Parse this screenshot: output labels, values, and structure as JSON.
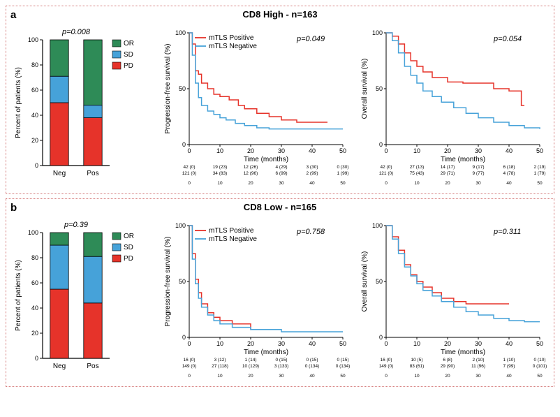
{
  "panels": [
    {
      "label": "a",
      "title": "CD8 High - n=163",
      "bar": {
        "pvalue": "p=0.008",
        "ylabel": "Percent of patients (%)",
        "ylim": [
          0,
          100
        ],
        "ytick_step": 20,
        "categories": [
          "Neg",
          "Pos"
        ],
        "series": [
          {
            "name": "PD",
            "color": "#e6332a",
            "values": [
              50,
              38
            ]
          },
          {
            "name": "SD",
            "color": "#46a2d9",
            "values": [
              21,
              10
            ]
          },
          {
            "name": "OR",
            "color": "#2e8b57",
            "values": [
              29,
              52
            ]
          }
        ],
        "legend_order": [
          "OR",
          "SD",
          "PD"
        ],
        "bar_width": 0.55
      },
      "survival": [
        {
          "ylabel": "Progression-free survival (%)",
          "xlabel": "Time (months)",
          "pvalue": "p=0.049",
          "xlim": [
            0,
            50
          ],
          "xtick_step": 10,
          "ylim": [
            0,
            100
          ],
          "ytick_step": 50,
          "legend_pos": "top-left",
          "lines": [
            {
              "name": "mTLS Positive",
              "color": "#e6332a",
              "points": [
                [
                  0,
                  100
                ],
                [
                  1,
                  90
                ],
                [
                  2,
                  66
                ],
                [
                  3,
                  63
                ],
                [
                  4,
                  55
                ],
                [
                  6,
                  50
                ],
                [
                  8,
                  45
                ],
                [
                  10,
                  43
                ],
                [
                  13,
                  40
                ],
                [
                  16,
                  35
                ],
                [
                  18,
                  32
                ],
                [
                  22,
                  28
                ],
                [
                  26,
                  25
                ],
                [
                  30,
                  22
                ],
                [
                  35,
                  20
                ],
                [
                  45,
                  20
                ]
              ]
            },
            {
              "name": "mTLS Negative",
              "color": "#46a2d9",
              "points": [
                [
                  0,
                  100
                ],
                [
                  1,
                  80
                ],
                [
                  2,
                  55
                ],
                [
                  3,
                  42
                ],
                [
                  4,
                  35
                ],
                [
                  6,
                  30
                ],
                [
                  8,
                  27
                ],
                [
                  10,
                  24
                ],
                [
                  12,
                  22
                ],
                [
                  15,
                  19
                ],
                [
                  18,
                  17
                ],
                [
                  22,
                  15
                ],
                [
                  26,
                  14
                ],
                [
                  30,
                  14
                ],
                [
                  40,
                  14
                ],
                [
                  50,
                  14
                ]
              ]
            }
          ],
          "risk_table": {
            "ticks": [
              0,
              10,
              20,
              30,
              40,
              50
            ],
            "rows": [
              {
                "color": "#e6332a",
                "cells": [
                  "42 (0)",
                  "19 (23)",
                  "12 (26)",
                  "4 (29)",
                  "3 (30)",
                  "0 (30)"
                ]
              },
              {
                "color": "#46a2d9",
                "cells": [
                  "121 (0)",
                  "34 (83)",
                  "12 (96)",
                  "6 (99)",
                  "2 (99)",
                  "1 (99)"
                ]
              }
            ]
          }
        },
        {
          "ylabel": "Overall survival (%)",
          "xlabel": "Time (months)",
          "pvalue": "p=0.054",
          "xlim": [
            0,
            50
          ],
          "xtick_step": 10,
          "ylim": [
            0,
            100
          ],
          "ytick_step": 50,
          "legend_pos": "none",
          "lines": [
            {
              "name": "mTLS Positive",
              "color": "#e6332a",
              "points": [
                [
                  0,
                  100
                ],
                [
                  2,
                  97
                ],
                [
                  4,
                  90
                ],
                [
                  6,
                  82
                ],
                [
                  8,
                  75
                ],
                [
                  10,
                  70
                ],
                [
                  12,
                  65
                ],
                [
                  15,
                  60
                ],
                [
                  20,
                  56
                ],
                [
                  25,
                  55
                ],
                [
                  30,
                  55
                ],
                [
                  35,
                  50
                ],
                [
                  40,
                  48
                ],
                [
                  44,
                  35
                ],
                [
                  45,
                  35
                ]
              ]
            },
            {
              "name": "mTLS Negative",
              "color": "#46a2d9",
              "points": [
                [
                  0,
                  100
                ],
                [
                  2,
                  93
                ],
                [
                  4,
                  82
                ],
                [
                  6,
                  70
                ],
                [
                  8,
                  62
                ],
                [
                  10,
                  55
                ],
                [
                  12,
                  48
                ],
                [
                  15,
                  43
                ],
                [
                  18,
                  38
                ],
                [
                  22,
                  33
                ],
                [
                  26,
                  28
                ],
                [
                  30,
                  24
                ],
                [
                  35,
                  20
                ],
                [
                  40,
                  17
                ],
                [
                  45,
                  15
                ],
                [
                  50,
                  14
                ]
              ]
            }
          ],
          "risk_table": {
            "ticks": [
              0,
              10,
              20,
              30,
              40,
              50
            ],
            "rows": [
              {
                "color": "#e6332a",
                "cells": [
                  "42 (0)",
                  "27 (13)",
                  "14 (17)",
                  "9 (17)",
                  "6 (18)",
                  "2 (19)"
                ]
              },
              {
                "color": "#46a2d9",
                "cells": [
                  "121 (0)",
                  "75 (43)",
                  "29 (71)",
                  "9 (77)",
                  "4 (78)",
                  "1 (79)"
                ]
              }
            ]
          }
        }
      ]
    },
    {
      "label": "b",
      "title": "CD8 Low - n=165",
      "bar": {
        "pvalue": "p=0.39",
        "ylabel": "Percent of patients (%)",
        "ylim": [
          0,
          100
        ],
        "ytick_step": 20,
        "categories": [
          "Neg",
          "Pos"
        ],
        "series": [
          {
            "name": "PD",
            "color": "#e6332a",
            "values": [
              55,
              44
            ]
          },
          {
            "name": "SD",
            "color": "#46a2d9",
            "values": [
              35,
              37
            ]
          },
          {
            "name": "OR",
            "color": "#2e8b57",
            "values": [
              10,
              19
            ]
          }
        ],
        "legend_order": [
          "OR",
          "SD",
          "PD"
        ],
        "bar_width": 0.55
      },
      "survival": [
        {
          "ylabel": "Progression-free survival (%)",
          "xlabel": "Time (months)",
          "pvalue": "p=0.758",
          "xlim": [
            0,
            50
          ],
          "xtick_step": 10,
          "ylim": [
            0,
            100
          ],
          "ytick_step": 50,
          "legend_pos": "top-left",
          "lines": [
            {
              "name": "mTLS Positive",
              "color": "#e6332a",
              "points": [
                [
                  0,
                  100
                ],
                [
                  1,
                  75
                ],
                [
                  2,
                  52
                ],
                [
                  3,
                  40
                ],
                [
                  4,
                  30
                ],
                [
                  6,
                  22
                ],
                [
                  8,
                  18
                ],
                [
                  10,
                  15
                ],
                [
                  14,
                  12
                ],
                [
                  20,
                  7
                ],
                [
                  30,
                  7
                ]
              ]
            },
            {
              "name": "mTLS Negative",
              "color": "#46a2d9",
              "points": [
                [
                  0,
                  100
                ],
                [
                  1,
                  70
                ],
                [
                  2,
                  48
                ],
                [
                  3,
                  35
                ],
                [
                  4,
                  27
                ],
                [
                  6,
                  20
                ],
                [
                  8,
                  15
                ],
                [
                  10,
                  12
                ],
                [
                  14,
                  9
                ],
                [
                  20,
                  7
                ],
                [
                  30,
                  5
                ],
                [
                  40,
                  5
                ],
                [
                  50,
                  5
                ]
              ]
            }
          ],
          "risk_table": {
            "ticks": [
              0,
              10,
              20,
              30,
              40,
              50
            ],
            "rows": [
              {
                "color": "#e6332a",
                "cells": [
                  "16 (0)",
                  "3 (12)",
                  "1 (14)",
                  "0 (15)",
                  "0 (15)",
                  "0 (15)"
                ]
              },
              {
                "color": "#46a2d9",
                "cells": [
                  "149 (0)",
                  "27 (118)",
                  "10 (129)",
                  "3 (133)",
                  "0 (134)",
                  "0 (134)"
                ]
              }
            ]
          }
        },
        {
          "ylabel": "Overall survival (%)",
          "xlabel": "Time (months)",
          "pvalue": "p=0.311",
          "xlim": [
            0,
            50
          ],
          "xtick_step": 10,
          "ylim": [
            0,
            100
          ],
          "ytick_step": 50,
          "legend_pos": "none",
          "lines": [
            {
              "name": "mTLS Positive",
              "color": "#e6332a",
              "points": [
                [
                  0,
                  100
                ],
                [
                  2,
                  90
                ],
                [
                  4,
                  78
                ],
                [
                  6,
                  65
                ],
                [
                  8,
                  56
                ],
                [
                  10,
                  50
                ],
                [
                  12,
                  45
                ],
                [
                  15,
                  40
                ],
                [
                  18,
                  35
                ],
                [
                  22,
                  32
                ],
                [
                  26,
                  30
                ],
                [
                  30,
                  30
                ],
                [
                  40,
                  30
                ]
              ]
            },
            {
              "name": "mTLS Negative",
              "color": "#46a2d9",
              "points": [
                [
                  0,
                  100
                ],
                [
                  2,
                  88
                ],
                [
                  4,
                  75
                ],
                [
                  6,
                  63
                ],
                [
                  8,
                  55
                ],
                [
                  10,
                  48
                ],
                [
                  12,
                  42
                ],
                [
                  15,
                  37
                ],
                [
                  18,
                  32
                ],
                [
                  22,
                  27
                ],
                [
                  26,
                  23
                ],
                [
                  30,
                  20
                ],
                [
                  35,
                  17
                ],
                [
                  40,
                  15
                ],
                [
                  45,
                  14
                ],
                [
                  50,
                  14
                ]
              ]
            }
          ],
          "risk_table": {
            "ticks": [
              0,
              10,
              20,
              30,
              40,
              50
            ],
            "rows": [
              {
                "color": "#e6332a",
                "cells": [
                  "16 (0)",
                  "10 (5)",
                  "6 (8)",
                  "2 (10)",
                  "1 (10)",
                  "0 (10)"
                ]
              },
              {
                "color": "#46a2d9",
                "cells": [
                  "149 (0)",
                  "83 (61)",
                  "29 (90)",
                  "11 (96)",
                  "7 (99)",
                  "0 (101)"
                ]
              }
            ]
          }
        }
      ]
    }
  ],
  "colors": {
    "panel_border": "#d47a7a",
    "axis": "#000000",
    "background": "#ffffff"
  },
  "typography": {
    "base_font": "Arial",
    "panel_label_size": 15,
    "title_size": 13,
    "axis_label_size": 10,
    "tick_size": 9,
    "pvalue_size": 11,
    "legend_size": 10
  }
}
